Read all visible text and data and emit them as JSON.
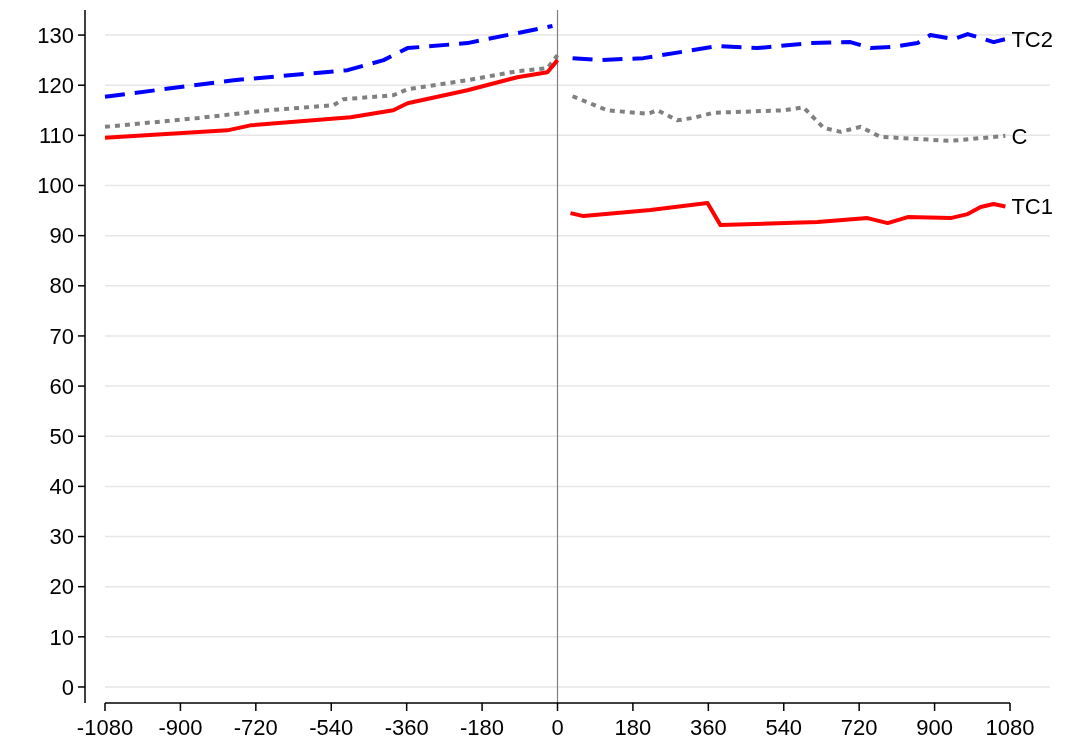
{
  "chart_data": {
    "type": "line",
    "xlim": [
      -1080,
      1080
    ],
    "xticks": [
      -1080,
      -900,
      -720,
      -540,
      -360,
      -180,
      0,
      180,
      360,
      540,
      720,
      900,
      1080
    ],
    "ylim": [
      -3,
      135
    ],
    "yticks": [
      0,
      10,
      20,
      30,
      40,
      50,
      60,
      70,
      80,
      90,
      100,
      110,
      120,
      130
    ],
    "grid": "y",
    "marker": "none",
    "ref_lines": [
      {
        "axis": "x",
        "value": 0,
        "color": "#808080"
      }
    ],
    "series": [
      {
        "name": "TC2",
        "color": "#0000ff",
        "line_style": "dashed",
        "x": [
          -1080,
          -773,
          -501,
          -415,
          -358,
          -215,
          -96,
          -12,
          20,
          36,
          103,
          205,
          382,
          477,
          604,
          699,
          747,
          795,
          859,
          890,
          945,
          979,
          1041,
          1069
        ],
        "values": [
          117.7,
          121,
          123,
          125,
          127.4,
          128.4,
          130.4,
          131.8,
          null,
          125.4,
          125,
          125.4,
          127.8,
          127.4,
          128.4,
          128.6,
          127.4,
          127.6,
          128.4,
          130,
          129.2,
          130.2,
          128.6,
          129.2
        ]
      },
      {
        "name": "C",
        "color": "#808080",
        "line_style": "dotted",
        "x": [
          -1080,
          -852,
          -692,
          -535,
          -511,
          -392,
          -358,
          -215,
          -96,
          -24,
          0,
          20,
          36,
          119,
          215,
          239,
          286,
          325,
          372,
          540,
          587,
          635,
          676,
          723,
          771,
          938,
          1069
        ],
        "values": [
          111.7,
          113.5,
          115,
          116,
          117.2,
          118,
          119.2,
          121,
          122.8,
          123.4,
          126,
          null,
          117.8,
          115,
          114.3,
          115,
          113,
          113.5,
          114.5,
          115,
          115.6,
          111.5,
          110.7,
          111.7,
          109.7,
          108.9,
          109.9
        ]
      },
      {
        "name": "TC1",
        "color": "#ff0000",
        "line_style": "solid",
        "x": [
          -1080,
          -788,
          -733,
          -494,
          -392,
          -358,
          -215,
          -96,
          -24,
          0,
          20,
          31,
          62,
          222,
          358,
          389,
          621,
          740,
          788,
          836,
          938,
          979,
          1010,
          1041,
          1069
        ],
        "values": [
          109.5,
          111,
          112,
          113.6,
          115,
          116.4,
          119,
          121.6,
          122.6,
          125,
          null,
          94.5,
          93.9,
          95.1,
          96.5,
          92.1,
          92.7,
          93.5,
          92.5,
          93.7,
          93.5,
          94.3,
          95.7,
          96.3,
          95.8
        ]
      }
    ]
  }
}
